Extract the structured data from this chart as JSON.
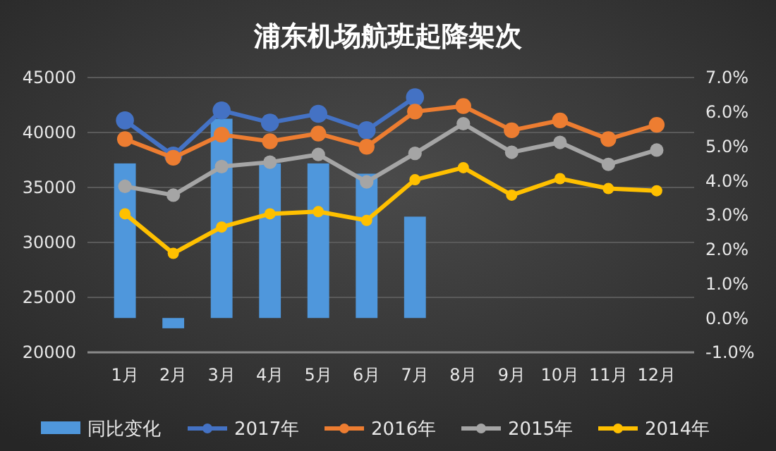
{
  "chart_data": {
    "type": "line",
    "title": "浦东机场航班起降架次",
    "categories": [
      "1月",
      "2月",
      "3月",
      "4月",
      "5月",
      "6月",
      "7月",
      "8月",
      "9月",
      "10月",
      "11月",
      "12月"
    ],
    "series": [
      {
        "name": "同比变化",
        "type": "bar",
        "axis": "y2",
        "color": "#4f97dc",
        "values": [
          4.5,
          -0.3,
          5.8,
          4.5,
          4.5,
          4.2,
          2.95,
          null,
          null,
          null,
          null,
          null
        ]
      },
      {
        "name": "2017年",
        "color": "#4472c4",
        "values": [
          41100,
          37900,
          42000,
          40900,
          41700,
          40200,
          43200,
          null,
          null,
          null,
          null,
          null
        ]
      },
      {
        "name": "2016年",
        "color": "#ed7d31",
        "values": [
          39400,
          37700,
          39800,
          39200,
          39900,
          38700,
          41900,
          42400,
          40200,
          41100,
          39400,
          40700
        ]
      },
      {
        "name": "2015年",
        "color": "#a5a5a5",
        "values": [
          35100,
          34300,
          36900,
          37300,
          38000,
          35500,
          38100,
          40800,
          38200,
          39100,
          37100,
          38400
        ]
      },
      {
        "name": "2014年",
        "color": "#ffc000",
        "values": [
          32600,
          29000,
          31400,
          32600,
          32800,
          32000,
          35700,
          36800,
          34300,
          35800,
          34900,
          34700
        ]
      }
    ],
    "ylim": [
      20000,
      45000
    ],
    "yticks": [
      20000,
      25000,
      30000,
      35000,
      40000,
      45000
    ],
    "y2lim": [
      -1,
      7
    ],
    "y2ticks": [
      {
        "value": -1,
        "label": "-1.0%"
      },
      {
        "value": 0,
        "label": "0.0%"
      },
      {
        "value": 1,
        "label": "1.0%"
      },
      {
        "value": 2,
        "label": "2.0%"
      },
      {
        "value": 3,
        "label": "3.0%"
      },
      {
        "value": 4,
        "label": "4.0%"
      },
      {
        "value": 5,
        "label": "5.0%"
      },
      {
        "value": 6,
        "label": "6.0%"
      },
      {
        "value": 7,
        "label": "7.0%"
      }
    ],
    "grid": "y",
    "legend": "bottom",
    "marker": "circle"
  }
}
